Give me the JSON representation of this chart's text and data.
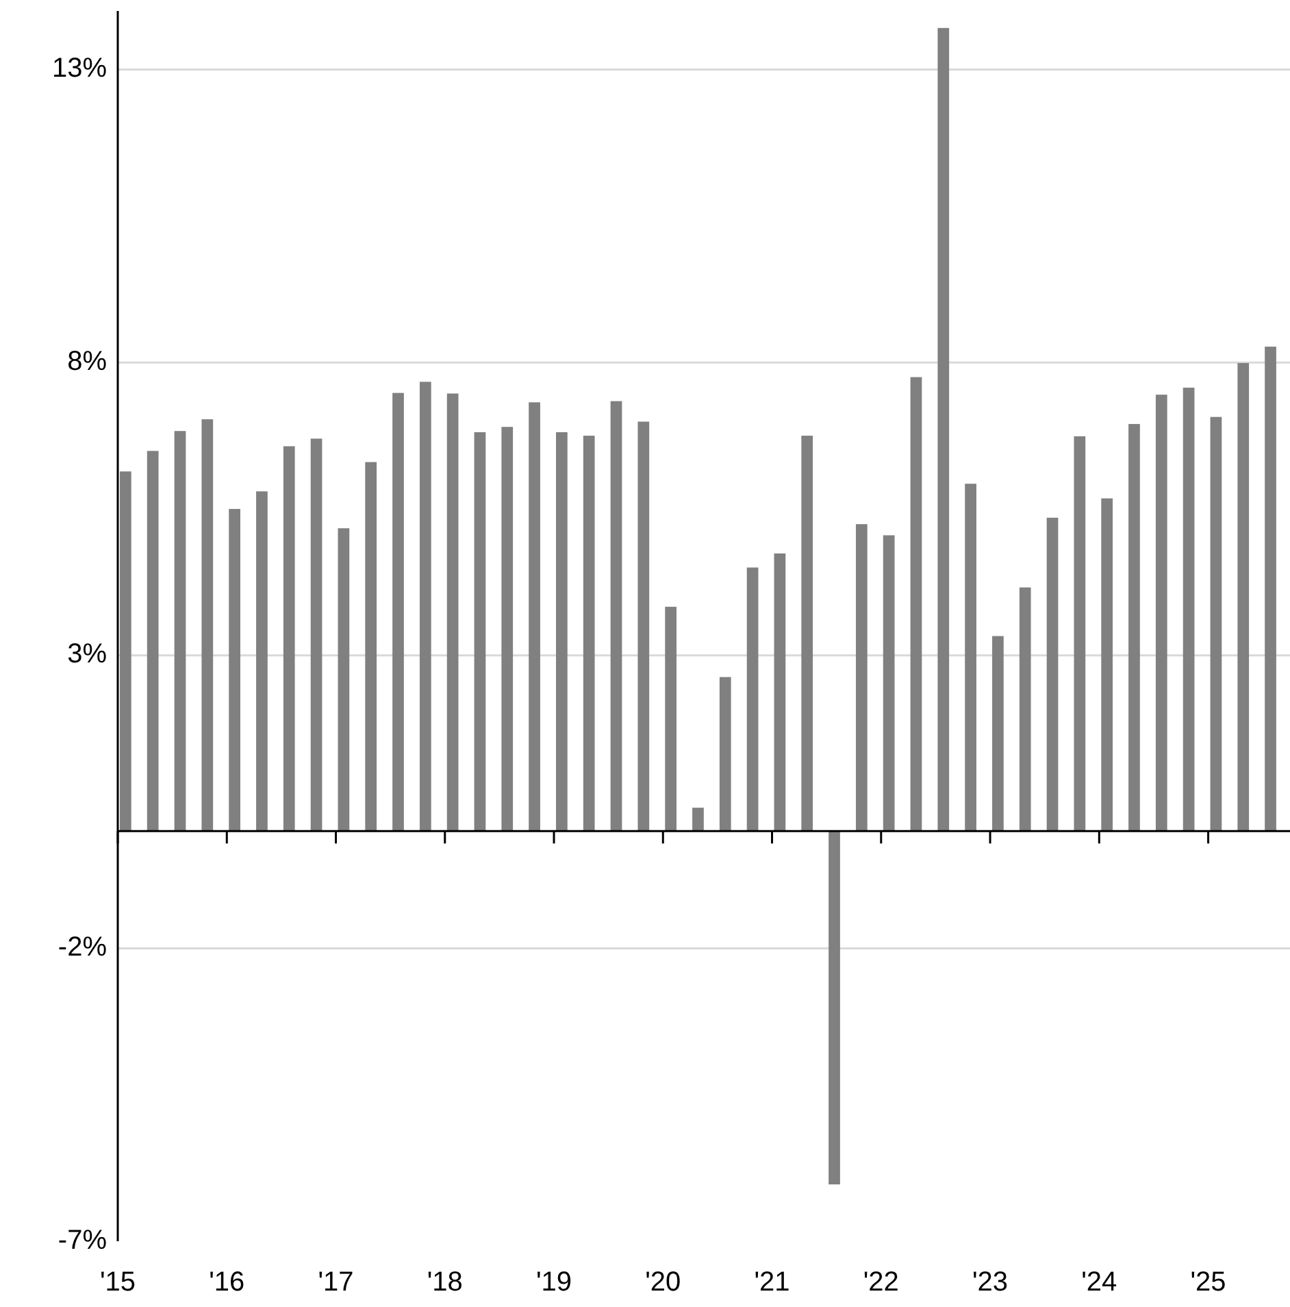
{
  "chart_data": {
    "type": "bar",
    "categories": [
      "'15",
      null,
      null,
      null,
      "'16",
      null,
      null,
      null,
      "'17",
      null,
      null,
      null,
      "'18",
      null,
      null,
      null,
      "'19",
      null,
      null,
      null,
      "'20",
      null,
      null,
      null,
      "'21",
      null,
      null,
      null,
      "'22",
      null,
      null,
      null,
      "'23",
      null,
      null,
      null,
      "'24",
      null,
      null,
      null,
      "'25",
      null,
      null
    ],
    "values": [
      6.14,
      6.49,
      6.83,
      7.03,
      5.5,
      5.8,
      6.57,
      6.7,
      5.17,
      6.3,
      7.48,
      7.67,
      7.47,
      6.81,
      6.9,
      7.32,
      6.81,
      6.75,
      7.34,
      6.99,
      3.83,
      0.4,
      2.63,
      4.5,
      4.74,
      6.75,
      -6.03,
      5.24,
      5.05,
      7.75,
      13.71,
      5.93,
      3.33,
      4.16,
      5.35,
      6.74,
      5.68,
      6.95,
      7.45,
      7.57,
      7.07,
      7.99,
      8.27
    ],
    "color": "#808080",
    "ylim": [
      -7,
      14
    ],
    "yticks": [
      {
        "value": 13,
        "label": "13%"
      },
      {
        "value": 8,
        "label": "8%"
      },
      {
        "value": 3,
        "label": "3%"
      },
      {
        "value": -2,
        "label": "-2%"
      },
      {
        "value": -7,
        "label": "-7%"
      }
    ],
    "grid": "y"
  }
}
